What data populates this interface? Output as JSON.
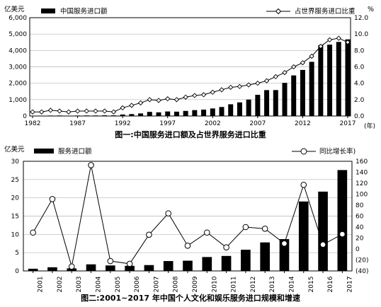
{
  "chart_data": [
    {
      "type": "bar",
      "caption": "图一:中国服务进口额及占世界服务进口比重",
      "y_left_label": "亿美元",
      "y_right_label": "%",
      "x_unit": "(年)",
      "legend": [
        {
          "label": "中国服务进口额",
          "marker": "bar"
        },
        {
          "label": "占世界服务进口比重",
          "marker": "diamond-line"
        }
      ],
      "x_ticks": [
        "1982",
        "1987",
        "1992",
        "1997",
        "2002",
        "2007",
        "2012",
        "2017"
      ],
      "y_left_ticks": [
        "0",
        "1,000",
        "2,000",
        "3,000",
        "4,000",
        "5,000",
        "6,000"
      ],
      "y_right_ticks": [
        "0.0",
        "2.0",
        "4.0",
        "6.0",
        "8.0",
        "10.0",
        "12.0"
      ],
      "ylim_left": [
        0,
        6000
      ],
      "ylim_right": [
        0,
        12
      ],
      "grid": true,
      "x": [
        1982,
        1983,
        1984,
        1985,
        1986,
        1987,
        1988,
        1989,
        1990,
        1991,
        1992,
        1993,
        1994,
        1995,
        1996,
        1997,
        1998,
        1999,
        2000,
        2001,
        2002,
        2003,
        2004,
        2005,
        2006,
        2007,
        2008,
        2009,
        2010,
        2011,
        2012,
        2013,
        2014,
        2015,
        2016,
        2017
      ],
      "series": [
        {
          "name": "中国服务进口额",
          "axis": "left",
          "kind": "bar",
          "values": [
            20,
            19,
            28,
            31,
            22,
            29,
            33,
            33,
            41,
            39,
            92,
            118,
            158,
            252,
            224,
            277,
            265,
            310,
            359,
            390,
            461,
            549,
            716,
            832,
            1003,
            1293,
            1580,
            1583,
            2022,
            2478,
            2813,
            3306,
            4329,
            4355,
            4521,
            4676
          ]
        },
        {
          "name": "占世界服务进口比重",
          "axis": "right",
          "kind": "line",
          "values": [
            0.5,
            0.5,
            0.7,
            0.6,
            0.5,
            0.6,
            0.6,
            0.6,
            0.6,
            0.5,
            1.0,
            1.3,
            1.6,
            2.0,
            1.9,
            2.1,
            2.0,
            2.3,
            2.5,
            2.6,
            2.9,
            3.2,
            3.5,
            3.6,
            3.8,
            4.0,
            4.3,
            4.8,
            5.3,
            6.0,
            6.5,
            7.3,
            8.5,
            9.3,
            9.5,
            9.0
          ]
        }
      ]
    },
    {
      "type": "bar",
      "caption": "图二:2001~2017 年中国个人文化和娱乐服务进口规模和增速",
      "y_left_label": "亿美元",
      "legend": [
        {
          "label": "服务进口额",
          "marker": "bar"
        },
        {
          "label": "同比增长率)",
          "marker": "circle-line"
        }
      ],
      "categories": [
        "2001",
        "2002",
        "2003",
        "2004",
        "2005",
        "2006",
        "2007",
        "2008",
        "2009",
        "2010",
        "2011",
        "2012",
        "2013",
        "2014",
        "2015",
        "2016",
        "2017"
      ],
      "y_left_ticks": [
        "0",
        "5",
        "10",
        "15",
        "20",
        "25",
        "30"
      ],
      "y_right_ticks": [
        "(40)",
        "(20)",
        "0",
        "20",
        "40",
        "60",
        "80",
        "100",
        "120",
        "140",
        "160"
      ],
      "ylim_left": [
        0,
        30
      ],
      "ylim_right": [
        -40,
        160
      ],
      "grid": true,
      "series": [
        {
          "name": "服务进口额",
          "axis": "left",
          "kind": "bar",
          "values": [
            0.6,
            1.0,
            0.7,
            1.8,
            1.5,
            1.4,
            1.6,
            2.7,
            2.8,
            3.8,
            4.1,
            5.8,
            7.8,
            8.7,
            19.0,
            21.7,
            27.6
          ]
        },
        {
          "name": "同比增长率)",
          "axis": "right",
          "kind": "line",
          "values": [
            30,
            91,
            -32,
            153,
            -22,
            -27,
            26,
            65,
            6,
            30,
            3,
            40,
            37,
            10,
            117,
            8,
            27
          ]
        }
      ]
    }
  ]
}
